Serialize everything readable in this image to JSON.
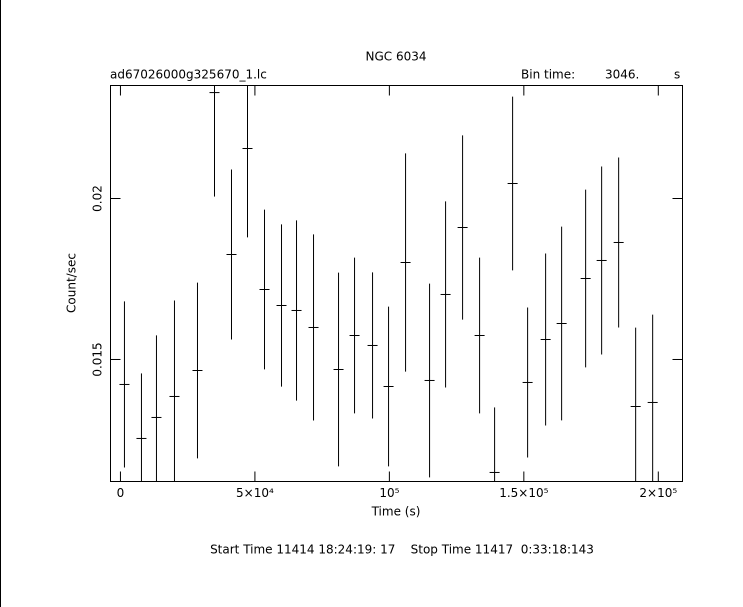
{
  "chart_data": {
    "type": "errorbar",
    "title": "NGC 6034",
    "subtitle": "ad67026000g325670_1.lc",
    "bin_time_label": "Bin time:",
    "bin_time": "3046.",
    "bin_time_unit": "s",
    "xlabel": "Time (s)",
    "ylabel": "Count/sec",
    "footer": "Start Time 11414 18:24:19: 17    Stop Time 11417  0:33:18:143",
    "color": "#000000",
    "xlim": [
      -3700,
      209000
    ],
    "ylim": [
      0.01121,
      0.02351
    ],
    "xticks": [
      0,
      {
        "value": 50000,
        "label": "5×10⁴"
      },
      {
        "value": 100000,
        "label": "10⁵"
      },
      {
        "value": 150000,
        "label": "1.5×10⁵"
      },
      {
        "value": 200000,
        "label": "2×10⁵"
      }
    ],
    "yticks": [
      0.015,
      0.02
    ],
    "x": [
      1488,
      7812,
      13392,
      20088,
      28644,
      34968,
      41292,
      47244,
      53568,
      59892,
      65472,
      71796,
      81096,
      87048,
      93744,
      99696,
      106020,
      114948,
      120900,
      127224,
      133548,
      139128,
      145824,
      151404,
      158100,
      164052,
      172980,
      178932,
      185256,
      191580,
      197904
    ],
    "values": [
      0.014224,
      0.012547,
      0.013199,
      0.013851,
      0.014658,
      0.02329,
      0.018261,
      0.021553,
      0.017174,
      0.016677,
      0.016522,
      0.015994,
      0.014689,
      0.015745,
      0.015435,
      0.014161,
      0.018012,
      0.014348,
      0.017019,
      0.019099,
      0.015745,
      0.011491,
      0.020466,
      0.014286,
      0.015621,
      0.016118,
      0.017515,
      0.018075,
      0.018634,
      0.01354,
      0.013665
    ],
    "errors": [
      0.00258,
      0.00202,
      0.00255,
      0.00298,
      0.00273,
      0.00323,
      0.00264,
      0.00276,
      0.00248,
      0.00252,
      0.0028,
      0.00289,
      0.00301,
      0.00242,
      0.00227,
      0.00248,
      0.00339,
      0.00301,
      0.00289,
      0.00286,
      0.00242,
      0.00202,
      0.0027,
      0.00233,
      0.00267,
      0.00301,
      0.00276,
      0.00292,
      0.00264,
      0.00245,
      0.00273
    ]
  }
}
